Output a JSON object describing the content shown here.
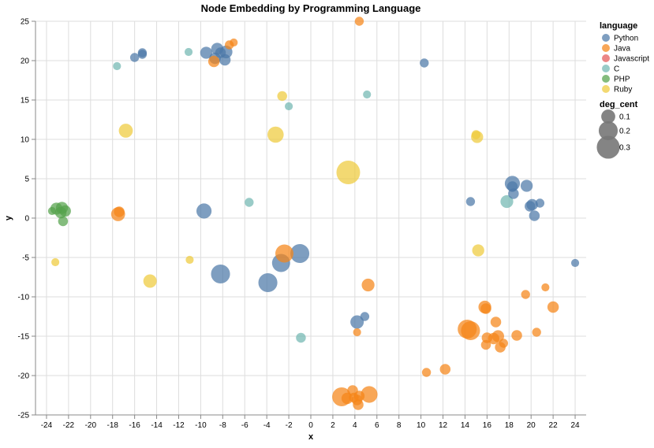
{
  "chart_data": {
    "type": "scatter",
    "title": "Node Embedding by Programming Language",
    "xlabel": "x",
    "ylabel": "y",
    "xlim": [
      -25,
      25
    ],
    "ylim": [
      -25,
      25
    ],
    "x_ticks": [
      -24,
      -22,
      -20,
      -18,
      -16,
      -14,
      -12,
      -10,
      -8,
      -6,
      -4,
      -2,
      0,
      2,
      4,
      6,
      8,
      10,
      12,
      14,
      16,
      18,
      20,
      22,
      24
    ],
    "y_ticks": [
      -25,
      -20,
      -15,
      -10,
      -5,
      0,
      5,
      10,
      15,
      20,
      25
    ],
    "grid": true,
    "legend": {
      "placement": "right",
      "color_title": "language",
      "size_title": "deg_cent",
      "size_entries": [
        {
          "label": "0.1",
          "value": 0.1
        },
        {
          "label": "0.2",
          "value": 0.2
        },
        {
          "label": "0.3",
          "value": 0.3
        }
      ]
    },
    "series": [
      {
        "name": "Python",
        "color": "#4c78a8",
        "points": [
          [
            -15.3,
            21.0,
            0.03
          ],
          [
            -15.3,
            20.8,
            0.03
          ],
          [
            -16.0,
            20.4,
            0.03
          ],
          [
            -9.5,
            21.0,
            0.07
          ],
          [
            -8.5,
            21.5,
            0.07
          ],
          [
            -7.7,
            21.1,
            0.08
          ],
          [
            -8.2,
            21.0,
            0.05
          ],
          [
            -8.7,
            20.3,
            0.06
          ],
          [
            -7.8,
            20.1,
            0.06
          ],
          [
            -9.7,
            0.9,
            0.12
          ],
          [
            -8.2,
            -7.1,
            0.2
          ],
          [
            -3.9,
            -8.2,
            0.2
          ],
          [
            -2.7,
            -5.7,
            0.18
          ],
          [
            -1.0,
            -4.5,
            0.2
          ],
          [
            4.2,
            -13.2,
            0.09
          ],
          [
            4.9,
            -12.5,
            0.03
          ],
          [
            14.5,
            2.1,
            0.03
          ],
          [
            18.3,
            4.4,
            0.12
          ],
          [
            18.3,
            4.0,
            0.05
          ],
          [
            18.4,
            3.1,
            0.05
          ],
          [
            19.6,
            4.1,
            0.07
          ],
          [
            20.1,
            1.7,
            0.06
          ],
          [
            19.9,
            1.5,
            0.05
          ],
          [
            20.8,
            1.9,
            0.03
          ],
          [
            20.3,
            0.3,
            0.05
          ],
          [
            10.3,
            19.7,
            0.03
          ],
          [
            24.0,
            -5.7,
            0.02
          ]
        ]
      },
      {
        "name": "Java",
        "color": "#f58518",
        "points": [
          [
            -8.8,
            19.9,
            0.06
          ],
          [
            -7.4,
            22.0,
            0.03
          ],
          [
            -7.0,
            22.3,
            0.02
          ],
          [
            4.4,
            25.0,
            0.03
          ],
          [
            -17.5,
            0.5,
            0.1
          ],
          [
            -17.4,
            0.8,
            0.05
          ],
          [
            -2.4,
            -4.5,
            0.18
          ],
          [
            5.2,
            -8.5,
            0.08
          ],
          [
            4.2,
            -14.5,
            0.02
          ],
          [
            10.5,
            -19.6,
            0.03
          ],
          [
            12.2,
            -19.2,
            0.05
          ],
          [
            2.8,
            -22.7,
            0.2
          ],
          [
            3.3,
            -22.9,
            0.06
          ],
          [
            3.8,
            -21.9,
            0.05
          ],
          [
            3.9,
            -22.8,
            0.04
          ],
          [
            4.2,
            -23.1,
            0.05
          ],
          [
            4.4,
            -22.6,
            0.05
          ],
          [
            4.3,
            -23.7,
            0.05
          ],
          [
            5.3,
            -22.4,
            0.15
          ],
          [
            14.2,
            -14.1,
            0.2
          ],
          [
            14.5,
            -14.3,
            0.2
          ],
          [
            15.8,
            -11.3,
            0.08
          ],
          [
            15.9,
            -11.5,
            0.05
          ],
          [
            16.0,
            -15.2,
            0.05
          ],
          [
            16.6,
            -15.3,
            0.06
          ],
          [
            16.8,
            -13.2,
            0.05
          ],
          [
            17.0,
            -15.0,
            0.07
          ],
          [
            17.2,
            -16.4,
            0.05
          ],
          [
            17.5,
            -15.9,
            0.03
          ],
          [
            18.7,
            -14.9,
            0.05
          ],
          [
            15.9,
            -16.1,
            0.04
          ],
          [
            19.5,
            -9.7,
            0.03
          ],
          [
            20.5,
            -14.5,
            0.03
          ],
          [
            21.3,
            -8.8,
            0.02
          ],
          [
            22.0,
            -11.3,
            0.06
          ]
        ]
      },
      {
        "name": "Javascript",
        "color": "#e45756",
        "points": []
      },
      {
        "name": "C",
        "color": "#72b7b2",
        "points": [
          [
            -5.6,
            2.0,
            0.03
          ],
          [
            -2.0,
            14.2,
            0.02
          ],
          [
            -0.9,
            -15.2,
            0.04
          ],
          [
            17.8,
            2.1,
            0.08
          ],
          [
            5.1,
            15.7,
            0.02
          ],
          [
            -11.1,
            21.1,
            0.02
          ],
          [
            -17.6,
            19.3,
            0.02
          ]
        ]
      },
      {
        "name": "PHP",
        "color": "#54a24b",
        "points": [
          [
            -23.1,
            1.2,
            0.07
          ],
          [
            -22.6,
            1.3,
            0.07
          ],
          [
            -22.3,
            0.9,
            0.06
          ],
          [
            -22.7,
            0.7,
            0.06
          ],
          [
            -23.5,
            0.9,
            0.02
          ],
          [
            -22.5,
            -0.4,
            0.04
          ]
        ]
      },
      {
        "name": "Ruby",
        "color": "#eeca3b",
        "points": [
          [
            -16.8,
            11.1,
            0.1
          ],
          [
            -3.2,
            10.6,
            0.14
          ],
          [
            -2.6,
            15.5,
            0.04
          ],
          [
            3.4,
            5.8,
            0.32
          ],
          [
            15.1,
            10.3,
            0.07
          ],
          [
            15.0,
            10.6,
            0.03
          ],
          [
            15.2,
            -4.1,
            0.07
          ],
          [
            -14.6,
            -8.0,
            0.09
          ],
          [
            -23.2,
            -5.6,
            0.02
          ],
          [
            -11.0,
            -5.3,
            0.02
          ]
        ]
      }
    ]
  }
}
